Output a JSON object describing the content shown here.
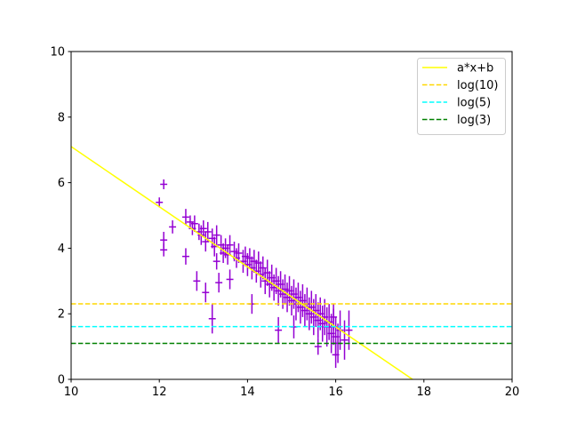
{
  "chart_data": {
    "type": "scatter",
    "title": "",
    "xlabel": "",
    "ylabel": "",
    "xlim": [
      10,
      20
    ],
    "ylim": [
      0,
      10
    ],
    "xticks": [
      "10",
      "12",
      "14",
      "16",
      "18",
      "20"
    ],
    "yticks": [
      "0",
      "2",
      "4",
      "6",
      "8",
      "10"
    ],
    "grid": false,
    "legend_position": "top-right",
    "colors": {
      "points": "#9400D3",
      "fit": "#FFFF00",
      "log10": "#FFD700",
      "log5": "#00FFFF",
      "log3": "#008000"
    },
    "fit_line": {
      "label": "a*x+b",
      "a": -0.917,
      "b": 16.27
    },
    "hlines": [
      {
        "label": "log(10)",
        "y": 2.303,
        "key": "log10"
      },
      {
        "label": "log(5)",
        "y": 1.609,
        "key": "log5"
      },
      {
        "label": "log(3)",
        "y": 1.099,
        "key": "log3"
      }
    ],
    "xerr": 0.08,
    "points": [
      [
        12.0,
        5.4,
        0.15
      ],
      [
        12.1,
        5.95,
        0.15
      ],
      [
        12.1,
        4.25,
        0.25
      ],
      [
        12.1,
        3.95,
        0.2
      ],
      [
        12.3,
        4.65,
        0.2
      ],
      [
        12.6,
        4.95,
        0.25
      ],
      [
        12.6,
        3.75,
        0.25
      ],
      [
        12.85,
        3.0,
        0.3
      ],
      [
        13.05,
        2.65,
        0.3
      ],
      [
        13.2,
        1.85,
        0.45
      ],
      [
        13.35,
        2.95,
        0.3
      ],
      [
        13.3,
        3.6,
        0.25
      ],
      [
        13.6,
        3.05,
        0.3
      ],
      [
        14.1,
        2.3,
        0.3
      ],
      [
        14.7,
        1.5,
        0.4
      ],
      [
        15.05,
        1.6,
        0.35
      ],
      [
        15.6,
        1.0,
        0.25
      ],
      [
        12.7,
        4.8,
        0.2
      ],
      [
        12.75,
        4.6,
        0.2
      ],
      [
        12.8,
        4.75,
        0.25
      ],
      [
        12.9,
        4.5,
        0.25
      ],
      [
        12.95,
        4.4,
        0.3
      ],
      [
        13.0,
        4.6,
        0.25
      ],
      [
        13.05,
        4.2,
        0.3
      ],
      [
        13.1,
        4.5,
        0.3
      ],
      [
        13.2,
        4.3,
        0.3
      ],
      [
        13.25,
        4.05,
        0.3
      ],
      [
        13.3,
        4.4,
        0.3
      ],
      [
        13.4,
        4.1,
        0.3
      ],
      [
        13.45,
        3.85,
        0.3
      ],
      [
        13.5,
        4.0,
        0.3
      ],
      [
        13.55,
        3.8,
        0.3
      ],
      [
        13.6,
        4.1,
        0.3
      ],
      [
        13.7,
        3.9,
        0.3
      ],
      [
        13.75,
        3.7,
        0.3
      ],
      [
        13.8,
        3.85,
        0.3
      ],
      [
        13.9,
        3.6,
        0.35
      ],
      [
        13.95,
        3.75,
        0.3
      ],
      [
        14.0,
        3.5,
        0.35
      ],
      [
        14.05,
        3.7,
        0.3
      ],
      [
        14.1,
        3.4,
        0.35
      ],
      [
        14.15,
        3.6,
        0.35
      ],
      [
        14.2,
        3.3,
        0.35
      ],
      [
        14.25,
        3.55,
        0.35
      ],
      [
        14.3,
        3.2,
        0.4
      ],
      [
        14.35,
        3.4,
        0.35
      ],
      [
        14.4,
        3.0,
        0.4
      ],
      [
        14.45,
        3.25,
        0.4
      ],
      [
        14.5,
        2.9,
        0.4
      ],
      [
        14.55,
        3.1,
        0.4
      ],
      [
        14.6,
        2.8,
        0.4
      ],
      [
        14.65,
        3.0,
        0.4
      ],
      [
        14.7,
        2.7,
        0.45
      ],
      [
        14.75,
        2.9,
        0.4
      ],
      [
        14.8,
        2.6,
        0.45
      ],
      [
        14.85,
        2.75,
        0.45
      ],
      [
        14.9,
        2.5,
        0.45
      ],
      [
        14.95,
        2.7,
        0.45
      ],
      [
        15.0,
        2.4,
        0.45
      ],
      [
        15.05,
        2.6,
        0.45
      ],
      [
        15.1,
        2.3,
        0.5
      ],
      [
        15.15,
        2.5,
        0.45
      ],
      [
        15.2,
        2.2,
        0.5
      ],
      [
        15.25,
        2.4,
        0.5
      ],
      [
        15.3,
        2.1,
        0.5
      ],
      [
        15.35,
        2.3,
        0.5
      ],
      [
        15.4,
        2.0,
        0.5
      ],
      [
        15.45,
        2.2,
        0.5
      ],
      [
        15.5,
        1.9,
        0.55
      ],
      [
        15.55,
        2.1,
        0.5
      ],
      [
        15.6,
        1.8,
        0.55
      ],
      [
        15.65,
        2.0,
        0.5
      ],
      [
        15.7,
        1.7,
        0.55
      ],
      [
        15.75,
        1.9,
        0.55
      ],
      [
        15.8,
        1.6,
        0.6
      ],
      [
        15.85,
        1.75,
        0.55
      ],
      [
        15.9,
        1.4,
        0.6
      ],
      [
        15.95,
        1.6,
        0.55
      ],
      [
        16.0,
        1.3,
        0.6
      ],
      [
        16.05,
        1.1,
        0.6
      ],
      [
        16.1,
        1.5,
        0.6
      ],
      [
        16.2,
        1.2,
        0.6
      ],
      [
        16.3,
        1.5,
        0.6
      ],
      [
        16.0,
        0.75,
        0.4
      ],
      [
        15.95,
        1.9,
        0.4
      ]
    ]
  }
}
